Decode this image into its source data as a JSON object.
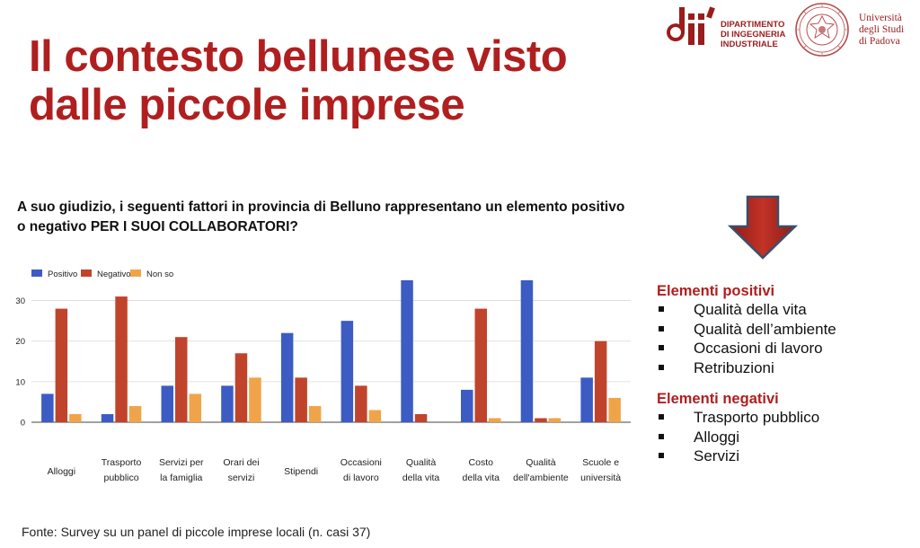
{
  "title": {
    "line1": "Il contesto bellunese visto",
    "line2": "dalle piccole imprese"
  },
  "logos": {
    "dii_mark": "dii",
    "department": [
      "DIPARTIMENTO",
      "DI INGEGNERIA",
      "INDUSTRIALE"
    ],
    "university": [
      "Università",
      "degli Studi",
      "di Padova"
    ]
  },
  "question": {
    "line1": "A suo giudizio, i seguenti fattori in provincia di Belluno rappresentano un elemento positivo",
    "line2_prefix": "o negativo ",
    "line2_bold": "PER I SUOI COLLABORATORI?"
  },
  "chart_data": {
    "type": "bar",
    "categories": [
      [
        "Alloggi"
      ],
      [
        "Trasporto",
        "pubblico"
      ],
      [
        "Servizi per",
        "la famiglia"
      ],
      [
        "Orari dei",
        "servizi"
      ],
      [
        "Stipendi"
      ],
      [
        "Occasioni",
        "di lavoro"
      ],
      [
        "Qualità",
        "della vita"
      ],
      [
        "Costo",
        "della vita"
      ],
      [
        "Qualità",
        "dell'ambiente"
      ],
      [
        "Scuole e",
        "università"
      ]
    ],
    "series": [
      {
        "name": "Positivo",
        "color": "#3c5cc4",
        "values": [
          7,
          2,
          9,
          9,
          22,
          25,
          35,
          8,
          35,
          11
        ]
      },
      {
        "name": "Negativo",
        "color": "#c0442c",
        "values": [
          28,
          31,
          21,
          17,
          11,
          9,
          2,
          28,
          1,
          20
        ]
      },
      {
        "name": "Non so",
        "color": "#f0a44a",
        "values": [
          2,
          4,
          7,
          11,
          4,
          3,
          0,
          1,
          1,
          6
        ]
      }
    ],
    "y_ticks": [
      0,
      10,
      20,
      30
    ],
    "ylim": [
      0,
      35
    ],
    "grid": true,
    "legend_position": "top-left"
  },
  "positives": {
    "heading": "Elementi positivi",
    "items": [
      "Qualità della vita",
      "Qualità dell’ambiente",
      "Occasioni di lavoro",
      "Retribuzioni"
    ]
  },
  "negatives": {
    "heading": "Elementi negativi",
    "items": [
      "Trasporto pubblico",
      "Alloggi",
      "Servizi"
    ]
  },
  "source": "Fonte: Survey su un panel di piccole imprese locali (n. casi 37)",
  "colors": {
    "title": "#b01f1f",
    "arrow_fill": "#b72b22",
    "arrow_stroke": "#3b4f6b"
  }
}
